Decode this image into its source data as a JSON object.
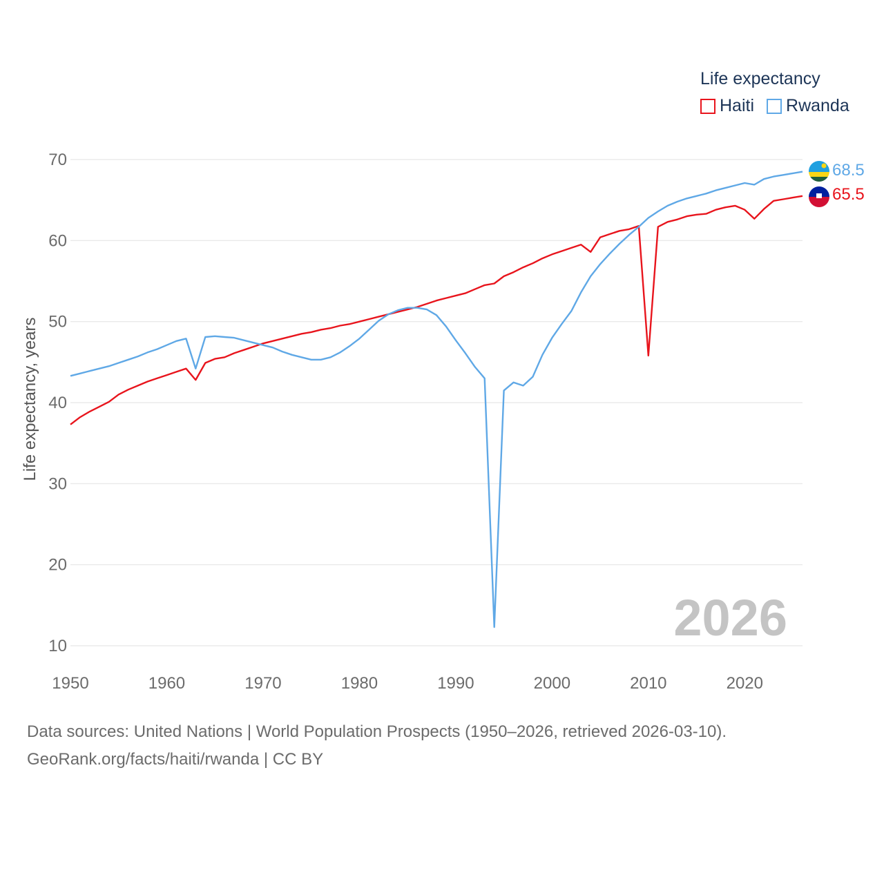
{
  "legend": {
    "title": "Life expectancy",
    "items": [
      {
        "label": "Haiti",
        "color": "#e8141c"
      },
      {
        "label": "Rwanda",
        "color": "#5fa8e6"
      }
    ]
  },
  "source": {
    "line1": "Data sources: United Nations | World Population Prospects (1950–2026, retrieved 2026-03-10).",
    "line2": "GeoRank.org/facts/haiti/rwanda | CC BY"
  },
  "chart_data": {
    "type": "line",
    "title": "Life expectancy",
    "xlabel": "",
    "ylabel": "Life expectancy, years",
    "year_label": "2026",
    "xlim": [
      1950,
      2026
    ],
    "ylim": [
      10,
      70
    ],
    "xticks": [
      "1950",
      "1960",
      "1970",
      "1980",
      "1990",
      "2000",
      "2010",
      "2020"
    ],
    "yticks": [
      "10",
      "20",
      "30",
      "40",
      "50",
      "60",
      "70"
    ],
    "x": [
      1950,
      1951,
      1952,
      1953,
      1954,
      1955,
      1956,
      1957,
      1958,
      1959,
      1960,
      1961,
      1962,
      1963,
      1964,
      1965,
      1966,
      1967,
      1968,
      1969,
      1970,
      1971,
      1972,
      1973,
      1974,
      1975,
      1976,
      1977,
      1978,
      1979,
      1980,
      1981,
      1982,
      1983,
      1984,
      1985,
      1986,
      1987,
      1988,
      1989,
      1990,
      1991,
      1992,
      1993,
      1994,
      1995,
      1996,
      1997,
      1998,
      1999,
      2000,
      2001,
      2002,
      2003,
      2004,
      2005,
      2006,
      2007,
      2008,
      2009,
      2010,
      2011,
      2012,
      2013,
      2014,
      2015,
      2016,
      2017,
      2018,
      2019,
      2020,
      2021,
      2022,
      2023,
      2024,
      2025,
      2026
    ],
    "series": [
      {
        "name": "Haiti",
        "color": "#e8141c",
        "end_label": "65.5",
        "values": [
          37.3,
          38.2,
          38.9,
          39.5,
          40.1,
          41.0,
          41.6,
          42.1,
          42.6,
          43.0,
          43.4,
          43.8,
          44.2,
          42.8,
          44.9,
          45.4,
          45.6,
          46.1,
          46.5,
          46.9,
          47.3,
          47.6,
          47.9,
          48.2,
          48.5,
          48.7,
          49.0,
          49.2,
          49.5,
          49.7,
          50.0,
          50.3,
          50.6,
          50.9,
          51.2,
          51.5,
          51.8,
          52.2,
          52.6,
          52.9,
          53.2,
          53.5,
          54.0,
          54.5,
          54.7,
          55.6,
          56.1,
          56.7,
          57.2,
          57.8,
          58.3,
          58.7,
          59.1,
          59.5,
          58.6,
          60.4,
          60.8,
          61.2,
          61.4,
          61.8,
          45.8,
          61.7,
          62.3,
          62.6,
          63.0,
          63.2,
          63.3,
          63.8,
          64.1,
          64.3,
          63.8,
          62.7,
          63.9,
          64.9,
          65.1,
          65.3,
          65.5
        ]
      },
      {
        "name": "Rwanda",
        "color": "#5fa8e6",
        "end_label": "68.5",
        "values": [
          43.3,
          43.6,
          43.9,
          44.2,
          44.5,
          44.9,
          45.3,
          45.7,
          46.2,
          46.6,
          47.1,
          47.6,
          47.9,
          44.2,
          48.1,
          48.2,
          48.1,
          48.0,
          47.7,
          47.4,
          47.1,
          46.8,
          46.3,
          45.9,
          45.6,
          45.3,
          45.3,
          45.6,
          46.2,
          47.0,
          47.9,
          49.0,
          50.1,
          50.9,
          51.4,
          51.7,
          51.7,
          51.5,
          50.8,
          49.4,
          47.7,
          46.1,
          44.4,
          43.0,
          12.3,
          41.5,
          42.5,
          42.1,
          43.2,
          45.9,
          48.0,
          49.7,
          51.3,
          53.6,
          55.6,
          57.1,
          58.4,
          59.6,
          60.7,
          61.7,
          62.8,
          63.6,
          64.3,
          64.8,
          65.2,
          65.5,
          65.8,
          66.2,
          66.5,
          66.8,
          67.1,
          66.9,
          67.6,
          67.9,
          68.1,
          68.3,
          68.5
        ]
      }
    ]
  }
}
